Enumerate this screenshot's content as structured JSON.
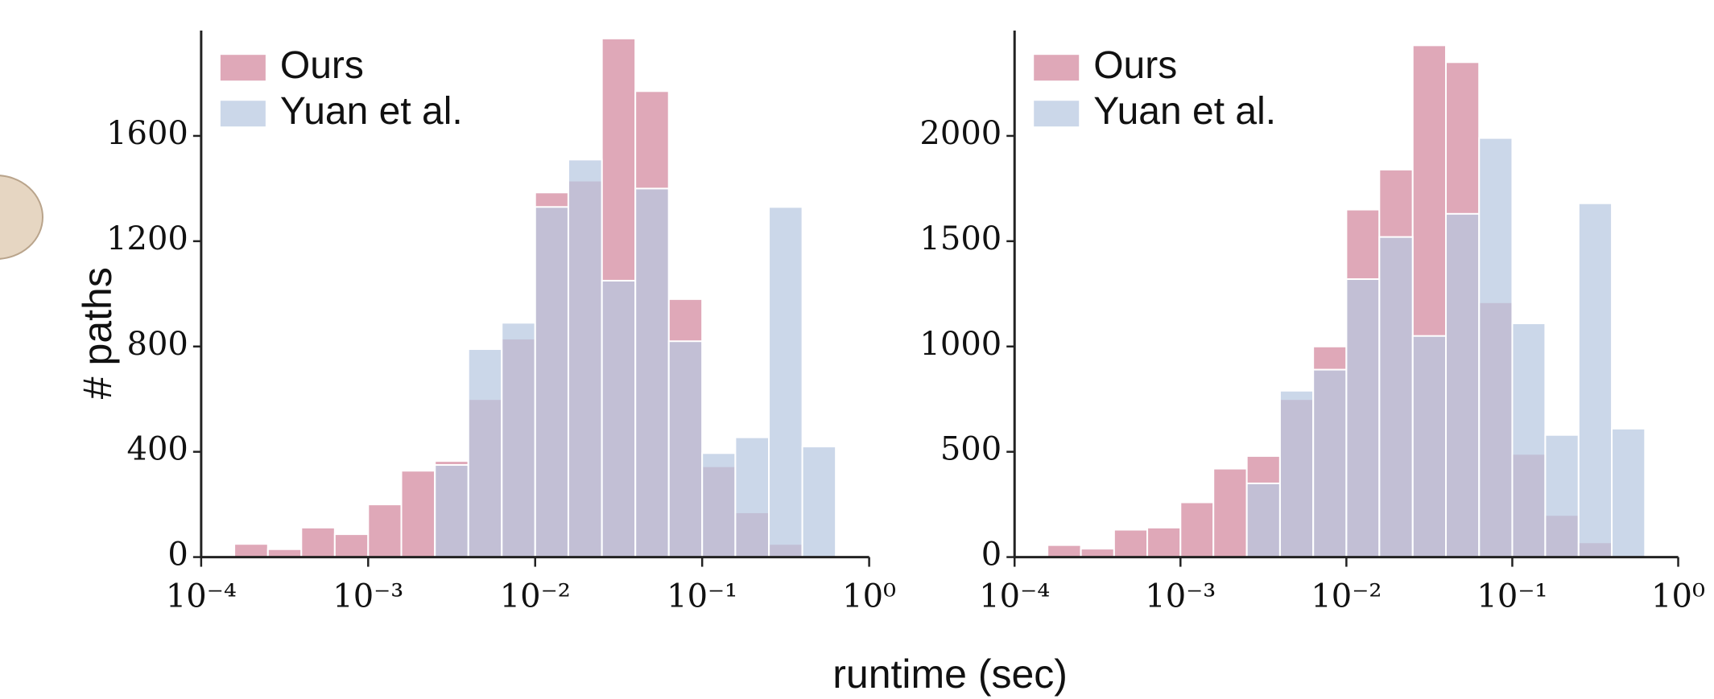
{
  "chart_data": [
    {
      "type": "histogram",
      "xscale": "log",
      "legend": "upper left",
      "ylabel": "# paths",
      "xlabel": "runtime (sec)",
      "bins": [
        0.000158,
        0.000251,
        0.000398,
        0.000631,
        0.001,
        0.00158,
        0.00251,
        0.00398,
        0.00631,
        0.01,
        0.0158,
        0.0251,
        0.0398,
        0.0631,
        0.1,
        0.158,
        0.251,
        0.398,
        0.631
      ],
      "series": [
        {
          "name": "Ours",
          "color": "#dfa8b8",
          "values": [
            50,
            30,
            112,
            87,
            200,
            328,
            365,
            600,
            830,
            1385,
            1430,
            1970,
            1770,
            980,
            345,
            170,
            50,
            0
          ]
        },
        {
          "name": "Yuan et al.",
          "color": "#b7c8e1",
          "values": [
            0,
            0,
            0,
            0,
            0,
            0,
            350,
            790,
            890,
            1330,
            1510,
            1050,
            1400,
            820,
            395,
            455,
            1330,
            420
          ]
        }
      ],
      "xlim": [
        0.0001,
        1
      ],
      "ylim": [
        0,
        2000
      ],
      "xticks": [
        {
          "value": 0.0001,
          "label": "10⁻⁴"
        },
        {
          "value": 0.001,
          "label": "10⁻³"
        },
        {
          "value": 0.01,
          "label": "10⁻²"
        },
        {
          "value": 0.1,
          "label": "10⁻¹"
        },
        {
          "value": 1,
          "label": "10⁰"
        }
      ],
      "yticks": [
        0,
        400,
        800,
        1200,
        1600
      ]
    },
    {
      "type": "histogram",
      "xscale": "log",
      "legend": "upper left",
      "bins": [
        0.000158,
        0.000251,
        0.000398,
        0.000631,
        0.001,
        0.00158,
        0.00251,
        0.00398,
        0.00631,
        0.01,
        0.0158,
        0.0251,
        0.0398,
        0.0631,
        0.1,
        0.158,
        0.251,
        0.398,
        0.631
      ],
      "series": [
        {
          "name": "Ours",
          "color": "#dfa8b8",
          "values": [
            57,
            40,
            130,
            140,
            260,
            420,
            480,
            750,
            1000,
            1650,
            1840,
            2430,
            2350,
            1210,
            490,
            200,
            70,
            0
          ]
        },
        {
          "name": "Yuan et al.",
          "color": "#b7c8e1",
          "values": [
            0,
            0,
            0,
            0,
            0,
            0,
            350,
            790,
            890,
            1320,
            1520,
            1050,
            1630,
            1990,
            1110,
            580,
            1680,
            610
          ]
        }
      ],
      "xlim": [
        0.0001,
        1
      ],
      "ylim": [
        0,
        2500
      ],
      "xticks": [
        {
          "value": 0.0001,
          "label": "10⁻⁴"
        },
        {
          "value": 0.001,
          "label": "10⁻³"
        },
        {
          "value": 0.01,
          "label": "10⁻²"
        },
        {
          "value": 0.1,
          "label": "10⁻¹"
        },
        {
          "value": 1,
          "label": "10⁰"
        }
      ],
      "yticks": [
        0,
        500,
        1000,
        1500,
        2000
      ]
    }
  ]
}
